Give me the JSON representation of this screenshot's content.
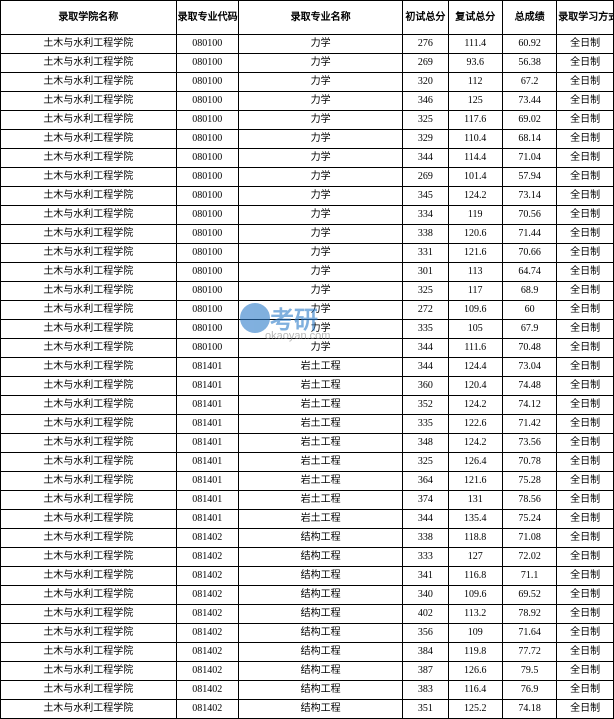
{
  "table": {
    "columns": [
      "录取学院名称",
      "录取专业代码",
      "录取专业名称",
      "初试总分",
      "复试总分",
      "总成绩",
      "录取学习方式"
    ],
    "column_classes": [
      "col-college",
      "col-code",
      "col-major",
      "col-s1",
      "col-s2",
      "col-total",
      "col-mode"
    ],
    "rows": [
      [
        "土木与水利工程学院",
        "080100",
        "力学",
        "276",
        "111.4",
        "60.92",
        "全日制"
      ],
      [
        "土木与水利工程学院",
        "080100",
        "力学",
        "269",
        "93.6",
        "56.38",
        "全日制"
      ],
      [
        "土木与水利工程学院",
        "080100",
        "力学",
        "320",
        "112",
        "67.2",
        "全日制"
      ],
      [
        "土木与水利工程学院",
        "080100",
        "力学",
        "346",
        "125",
        "73.44",
        "全日制"
      ],
      [
        "土木与水利工程学院",
        "080100",
        "力学",
        "325",
        "117.6",
        "69.02",
        "全日制"
      ],
      [
        "土木与水利工程学院",
        "080100",
        "力学",
        "329",
        "110.4",
        "68.14",
        "全日制"
      ],
      [
        "土木与水利工程学院",
        "080100",
        "力学",
        "344",
        "114.4",
        "71.04",
        "全日制"
      ],
      [
        "土木与水利工程学院",
        "080100",
        "力学",
        "269",
        "101.4",
        "57.94",
        "全日制"
      ],
      [
        "土木与水利工程学院",
        "080100",
        "力学",
        "345",
        "124.2",
        "73.14",
        "全日制"
      ],
      [
        "土木与水利工程学院",
        "080100",
        "力学",
        "334",
        "119",
        "70.56",
        "全日制"
      ],
      [
        "土木与水利工程学院",
        "080100",
        "力学",
        "338",
        "120.6",
        "71.44",
        "全日制"
      ],
      [
        "土木与水利工程学院",
        "080100",
        "力学",
        "331",
        "121.6",
        "70.66",
        "全日制"
      ],
      [
        "土木与水利工程学院",
        "080100",
        "力学",
        "301",
        "113",
        "64.74",
        "全日制"
      ],
      [
        "土木与水利工程学院",
        "080100",
        "力学",
        "325",
        "117",
        "68.9",
        "全日制"
      ],
      [
        "土木与水利工程学院",
        "080100",
        "力学",
        "272",
        "109.6",
        "60",
        "全日制"
      ],
      [
        "土木与水利工程学院",
        "080100",
        "力学",
        "335",
        "105",
        "67.9",
        "全日制"
      ],
      [
        "土木与水利工程学院",
        "080100",
        "力学",
        "344",
        "111.6",
        "70.48",
        "全日制"
      ],
      [
        "土木与水利工程学院",
        "081401",
        "岩土工程",
        "344",
        "124.4",
        "73.04",
        "全日制"
      ],
      [
        "土木与水利工程学院",
        "081401",
        "岩土工程",
        "360",
        "120.4",
        "74.48",
        "全日制"
      ],
      [
        "土木与水利工程学院",
        "081401",
        "岩土工程",
        "352",
        "124.2",
        "74.12",
        "全日制"
      ],
      [
        "土木与水利工程学院",
        "081401",
        "岩土工程",
        "335",
        "122.6",
        "71.42",
        "全日制"
      ],
      [
        "土木与水利工程学院",
        "081401",
        "岩土工程",
        "348",
        "124.2",
        "73.56",
        "全日制"
      ],
      [
        "土木与水利工程学院",
        "081401",
        "岩土工程",
        "325",
        "126.4",
        "70.78",
        "全日制"
      ],
      [
        "土木与水利工程学院",
        "081401",
        "岩土工程",
        "364",
        "121.6",
        "75.28",
        "全日制"
      ],
      [
        "土木与水利工程学院",
        "081401",
        "岩土工程",
        "374",
        "131",
        "78.56",
        "全日制"
      ],
      [
        "土木与水利工程学院",
        "081401",
        "岩土工程",
        "344",
        "135.4",
        "75.24",
        "全日制"
      ],
      [
        "土木与水利工程学院",
        "081402",
        "结构工程",
        "338",
        "118.8",
        "71.08",
        "全日制"
      ],
      [
        "土木与水利工程学院",
        "081402",
        "结构工程",
        "333",
        "127",
        "72.02",
        "全日制"
      ],
      [
        "土木与水利工程学院",
        "081402",
        "结构工程",
        "341",
        "116.8",
        "71.1",
        "全日制"
      ],
      [
        "土木与水利工程学院",
        "081402",
        "结构工程",
        "340",
        "109.6",
        "69.52",
        "全日制"
      ],
      [
        "土木与水利工程学院",
        "081402",
        "结构工程",
        "402",
        "113.2",
        "78.92",
        "全日制"
      ],
      [
        "土木与水利工程学院",
        "081402",
        "结构工程",
        "356",
        "109",
        "71.64",
        "全日制"
      ],
      [
        "土木与水利工程学院",
        "081402",
        "结构工程",
        "384",
        "119.8",
        "77.72",
        "全日制"
      ],
      [
        "土木与水利工程学院",
        "081402",
        "结构工程",
        "387",
        "126.6",
        "79.5",
        "全日制"
      ],
      [
        "土木与水利工程学院",
        "081402",
        "结构工程",
        "383",
        "116.4",
        "76.9",
        "全日制"
      ],
      [
        "土木与水利工程学院",
        "081402",
        "结构工程",
        "351",
        "125.2",
        "74.18",
        "全日制"
      ]
    ],
    "border_color": "#000000",
    "background_color": "#ffffff",
    "header_font_weight": "bold",
    "font_family": "SimSun",
    "font_size": 10
  },
  "watermark": {
    "logo_color": "#2d7cc9",
    "main_text": "考研",
    "sub_text": "okaoyan.com",
    "main_color": "#2d7cc9",
    "sub_color": "#888888"
  }
}
